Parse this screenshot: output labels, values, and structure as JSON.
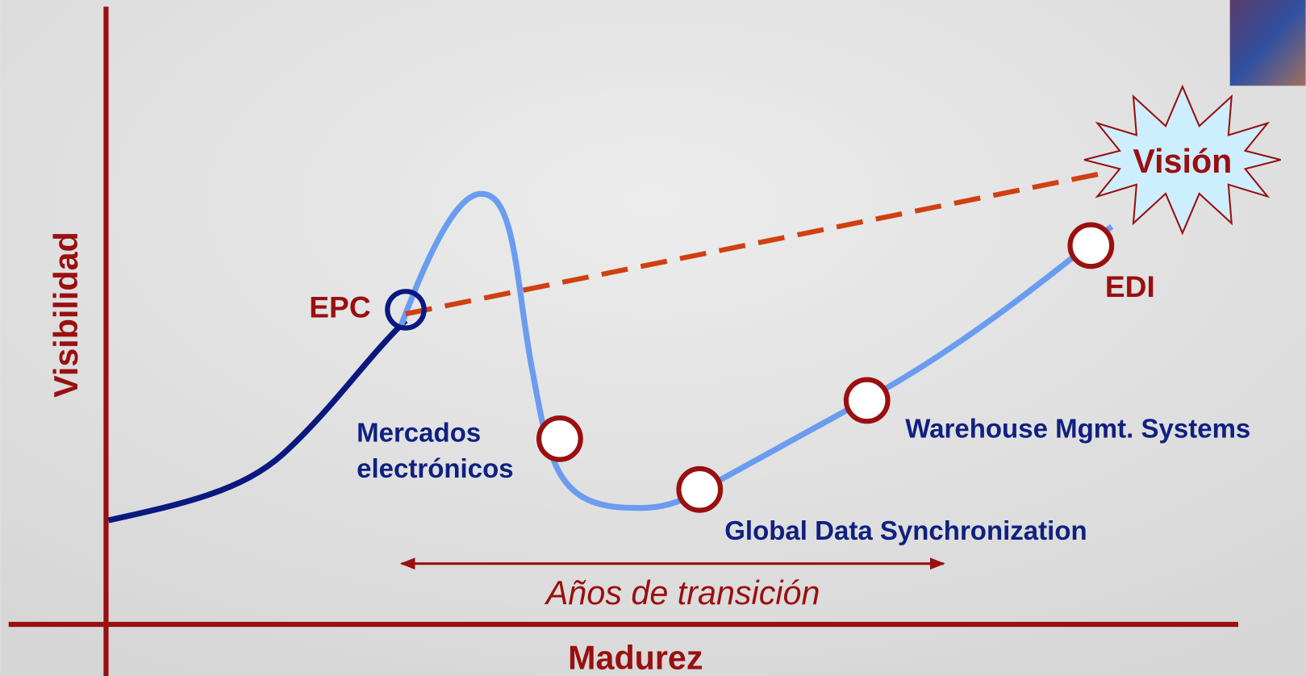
{
  "axes": {
    "y_label": "Visibilidad",
    "x_label": "Madurez"
  },
  "vision": "Visión",
  "transition": "Años de transición",
  "nodes": [
    {
      "label": [
        "EPC"
      ]
    },
    {
      "label": [
        "Mercados",
        "electrónicos"
      ]
    },
    {
      "label": [
        "Global Data Synchronization"
      ]
    },
    {
      "label": [
        "Warehouse Mgmt. Systems"
      ]
    },
    {
      "label": [
        "EDI"
      ]
    }
  ]
}
